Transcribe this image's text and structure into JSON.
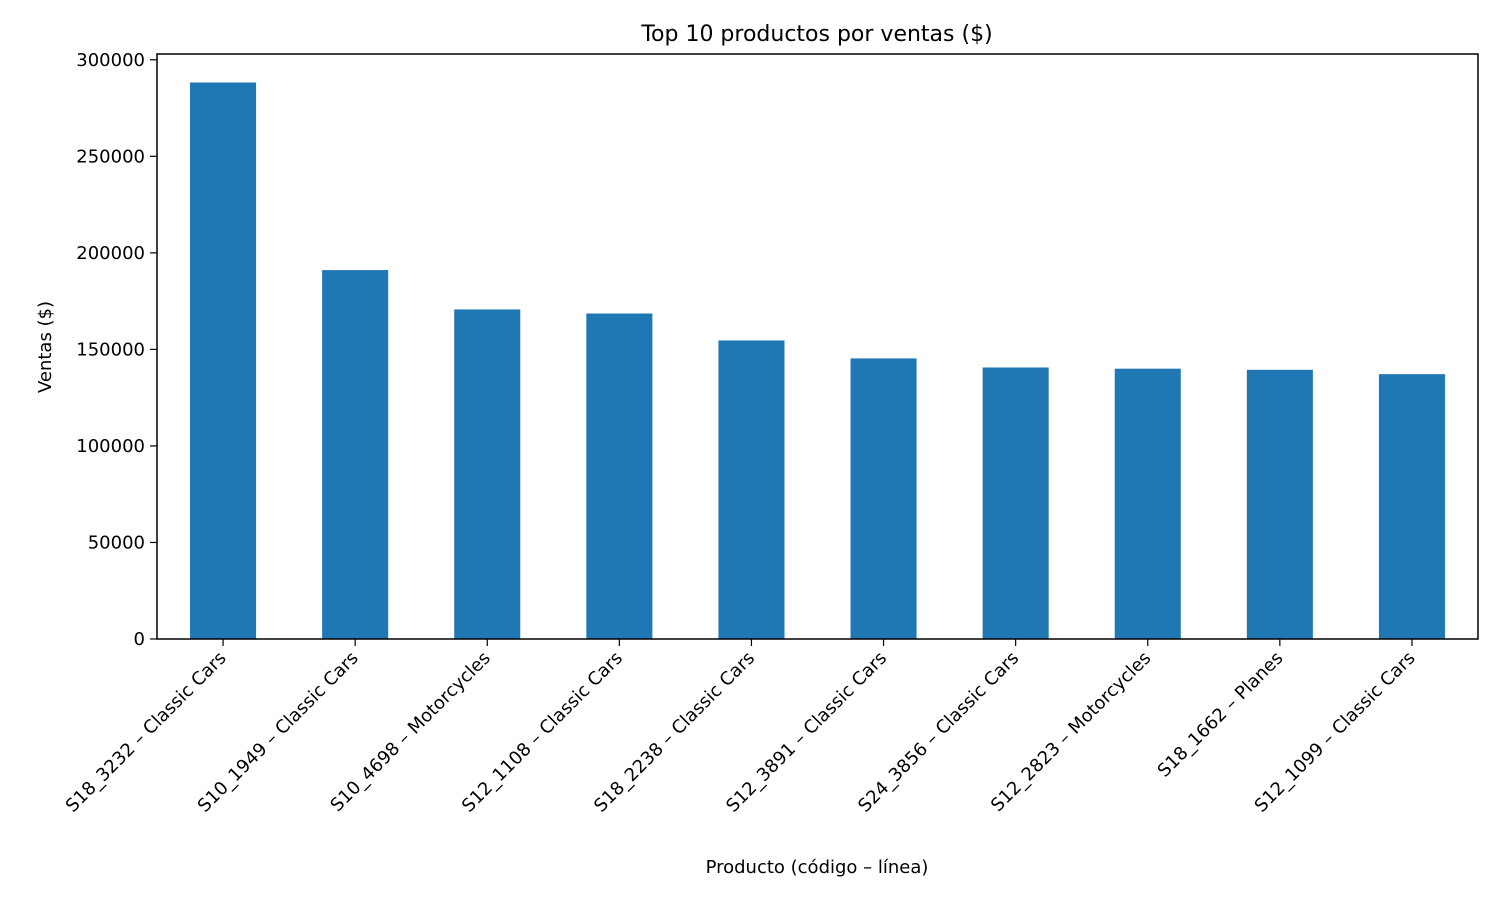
{
  "chart_data": {
    "type": "bar",
    "title": "Top 10 productos por ventas ($)",
    "xlabel": "Producto (código – línea)",
    "ylabel": "Ventas ($)",
    "ylim": [
      0,
      303000
    ],
    "yticks": [
      0,
      50000,
      100000,
      150000,
      200000,
      250000,
      300000
    ],
    "categories": [
      "S18_3232 – Classic Cars",
      "S10_1949 – Classic Cars",
      "S10_4698 – Motorcycles",
      "S12_1108 – Classic Cars",
      "S18_2238 – Classic Cars",
      "S12_3891 – Classic Cars",
      "S24_3856 – Classic Cars",
      "S12_2823 – Motorcycles",
      "S18_1662 – Planes",
      "S12_1099 – Classic Cars"
    ],
    "values": [
      288245,
      191073,
      170687,
      168585,
      154623,
      145332,
      140626,
      140006,
      139421,
      137177
    ],
    "bar_color": "#1f77b4",
    "grid": false,
    "legend": "none"
  }
}
